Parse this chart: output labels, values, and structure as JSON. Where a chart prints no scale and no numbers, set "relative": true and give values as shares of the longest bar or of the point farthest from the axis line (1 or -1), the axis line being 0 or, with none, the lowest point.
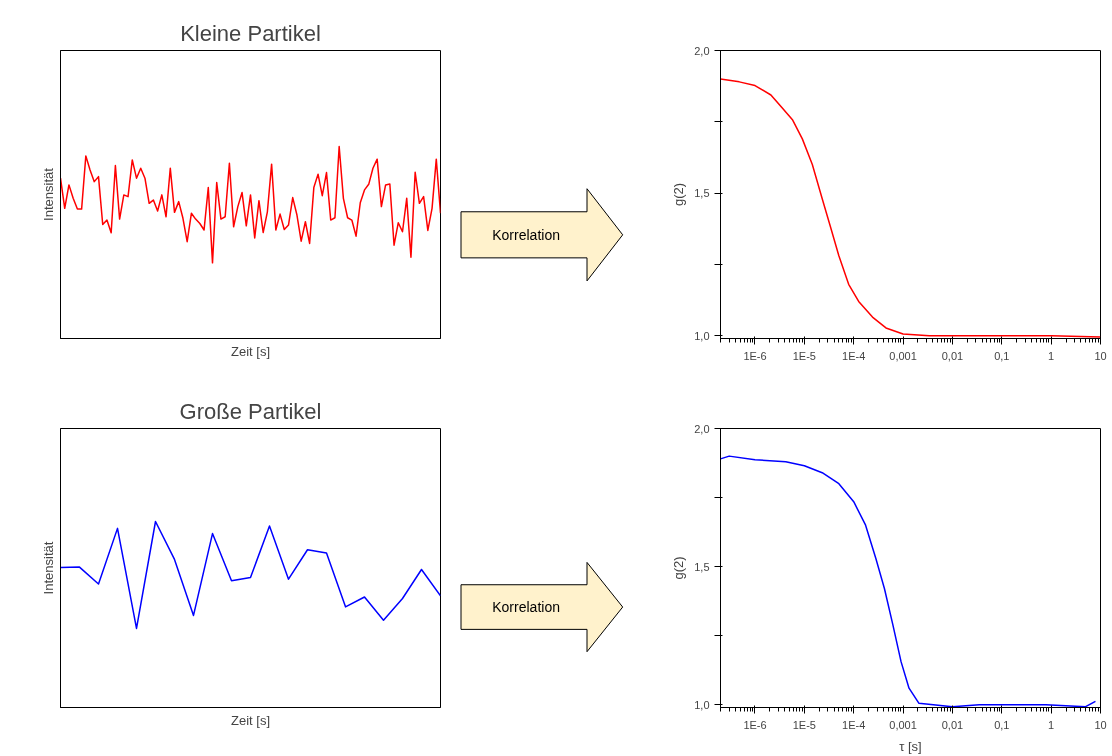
{
  "chart_data": [
    {
      "type": "line",
      "title": "Kleine Partikel",
      "xlabel": "Zeit [s]",
      "ylabel": "Intensität",
      "relative": true,
      "annotations": [
        "Korrelation"
      ],
      "categories": [
        null,
        null,
        null,
        null,
        null,
        null,
        null,
        null,
        null,
        null,
        null,
        null,
        null,
        null,
        null,
        null,
        null,
        null,
        null,
        null,
        null,
        null,
        null,
        null,
        null,
        null,
        null,
        null,
        null,
        null,
        null,
        null,
        null,
        null,
        null,
        null,
        null,
        null,
        null,
        null,
        null,
        null,
        null,
        null,
        null,
        null,
        null,
        null,
        null,
        null,
        null,
        null,
        null,
        null,
        null,
        null,
        null,
        null,
        null,
        null,
        null,
        null,
        null,
        null,
        null,
        null,
        null,
        null,
        null,
        null,
        null,
        null,
        null,
        null,
        null,
        null,
        null,
        null,
        null,
        null,
        null,
        null,
        null,
        null,
        null,
        null,
        null,
        null,
        null,
        null,
        null
      ],
      "series": [
        {
          "color": "#ff0000",
          "values": [
            0.835,
            0.678,
            0.8,
            0.73,
            0.674,
            0.674,
            0.951,
            0.878,
            0.817,
            0.843,
            0.594,
            0.617,
            0.551,
            0.901,
            0.622,
            0.748,
            0.739,
            0.93,
            0.835,
            0.887,
            0.835,
            0.704,
            0.721,
            0.664,
            0.748,
            0.634,
            0.887,
            0.657,
            0.713,
            0.626,
            0.504,
            0.652,
            0.622,
            0.599,
            0.565,
            0.786,
            0.394,
            0.812,
            0.622,
            0.634,
            0.913,
            0.582,
            0.687,
            0.76,
            0.587,
            0.748,
            0.524,
            0.718,
            0.552,
            0.66,
            0.908,
            0.565,
            0.648,
            0.568,
            0.591,
            0.734,
            0.643,
            0.507,
            0.608,
            0.495,
            0.786,
            0.856,
            0.744,
            0.864,
            0.617,
            0.629,
            1.0,
            0.73,
            0.629,
            0.617,
            0.533,
            0.707,
            0.774,
            0.803,
            0.887,
            0.934,
            0.687,
            0.8,
            0.805,
            0.486,
            0.603,
            0.556,
            0.73,
            0.423,
            0.866,
            0.704,
            0.739,
            0.563,
            0.678,
            0.934,
            0.652
          ]
        }
      ]
    },
    {
      "type": "line",
      "ylabel": "g(2)",
      "log": "x",
      "xlim": [
        2e-07,
        10
      ],
      "ylim": [
        0.99,
        2.0
      ],
      "xticks": [
        {
          "value": 1e-06,
          "label": "1E-6"
        },
        {
          "value": 1e-05,
          "label": "1E-5"
        },
        {
          "value": 0.0001,
          "label": "1E-4"
        },
        {
          "value": 0.001,
          "label": "0,001"
        },
        {
          "value": 0.01,
          "label": "0,01"
        },
        {
          "value": 0.1,
          "label": "0,1"
        },
        1,
        10
      ],
      "yticks": [
        {
          "value": 1.0,
          "label": "1,0"
        },
        {
          "value": 1.25,
          "label": null
        },
        {
          "value": 1.5,
          "label": "1,5"
        },
        {
          "value": 1.75,
          "label": null
        },
        {
          "value": 2.0,
          "label": "2,0"
        }
      ],
      "series": [
        {
          "color": "#ff0000",
          "x": [
            2e-07,
            4.8e-07,
            1e-06,
            2.1e-06,
            3.5e-06,
            5.8e-06,
            9.1e-06,
            1.45e-05,
            2.3e-05,
            3.4e-05,
            5e-05,
            7.9e-05,
            0.000126,
            0.00024,
            0.00045,
            0.001,
            0.0034,
            0.035,
            1,
            10
          ],
          "values": [
            1.9,
            1.89,
            1.877,
            1.844,
            1.8,
            1.756,
            1.69,
            1.6,
            1.48,
            1.38,
            1.28,
            1.18,
            1.12,
            1.065,
            1.027,
            1.006,
            1.0,
            1.0,
            1.0,
            0.995
          ]
        }
      ]
    },
    {
      "type": "line",
      "title": "Große Partikel",
      "xlabel": "Zeit [s]",
      "ylabel": "Intensität",
      "relative": true,
      "annotations": [
        "Korrelation"
      ],
      "categories": [
        null,
        null,
        null,
        null,
        null,
        null,
        null,
        null,
        null,
        null,
        null,
        null,
        null,
        null,
        null,
        null,
        null,
        null,
        null,
        null,
        null
      ],
      "series": [
        {
          "color": "#0000ff",
          "values": [
            0.753,
            0.755,
            0.664,
            0.963,
            0.425,
            1.0,
            0.796,
            0.495,
            0.935,
            0.681,
            0.699,
            0.976,
            0.69,
            0.848,
            0.831,
            0.541,
            0.594,
            0.469,
            0.586,
            0.742,
            0.601
          ]
        }
      ]
    },
    {
      "type": "line",
      "xlabel": "τ [s]",
      "ylabel": "g(2)",
      "log": "x",
      "xlim": [
        2e-07,
        10
      ],
      "ylim": [
        0.99,
        2.0
      ],
      "xticks": [
        {
          "value": 1e-06,
          "label": "1E-6"
        },
        {
          "value": 1e-05,
          "label": "1E-5"
        },
        {
          "value": 0.0001,
          "label": "1E-4"
        },
        {
          "value": 0.001,
          "label": "0,001"
        },
        {
          "value": 0.01,
          "label": "0,01"
        },
        {
          "value": 0.1,
          "label": "0,1"
        },
        1,
        10
      ],
      "yticks": [
        {
          "value": 1.0,
          "label": "1,0"
        },
        {
          "value": 1.25,
          "label": null
        },
        {
          "value": 1.5,
          "label": "1,5"
        },
        {
          "value": 1.75,
          "label": null
        },
        {
          "value": 2.0,
          "label": "2,0"
        }
      ],
      "series": [
        {
          "color": "#0000ff",
          "x": [
            2e-07,
            3e-07,
            1e-06,
            4.2e-06,
            1e-05,
            2.3e-05,
            5e-05,
            0.0001,
            0.000174,
            0.00028,
            0.00042,
            0.00062,
            0.00091,
            0.00132,
            0.0021,
            0.01,
            0.035,
            0.78,
            5,
            7.9
          ],
          "values": [
            1.89,
            1.9,
            1.887,
            1.88,
            1.865,
            1.84,
            1.8,
            1.735,
            1.65,
            1.53,
            1.42,
            1.29,
            1.156,
            1.06,
            1.005,
            0.993,
            1.0,
            1.0,
            0.993,
            1.012
          ]
        }
      ]
    }
  ]
}
